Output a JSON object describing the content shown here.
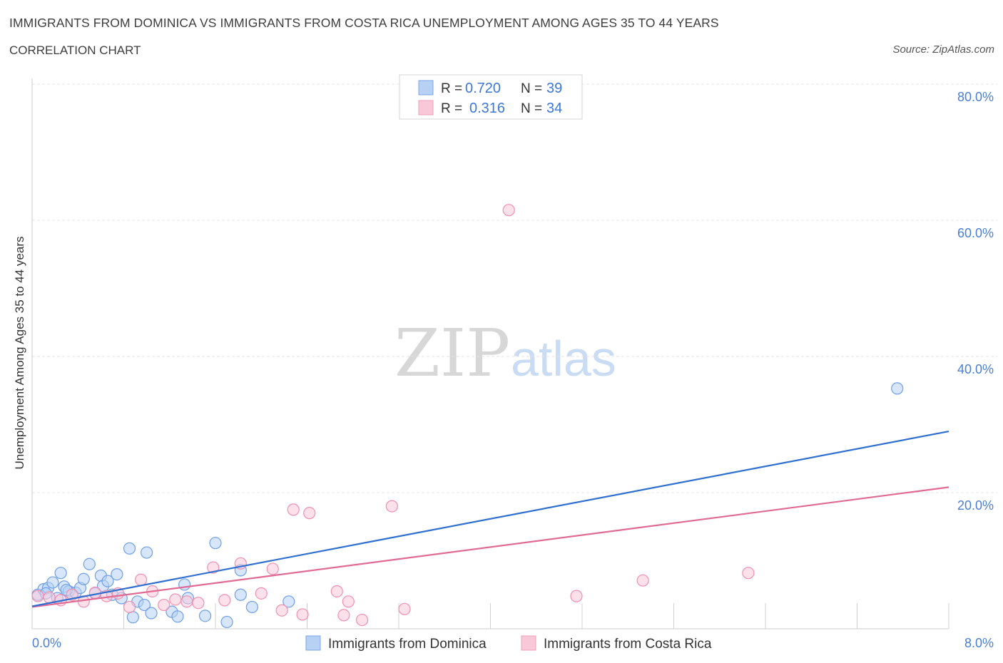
{
  "header": {
    "title": "IMMIGRANTS FROM DOMINICA VS IMMIGRANTS FROM COSTA RICA UNEMPLOYMENT AMONG AGES 35 TO 44 YEARS",
    "subtitle": "CORRELATION CHART",
    "source": "Source: ZipAtlas.com"
  },
  "watermark": {
    "zip": "ZIP",
    "atlas": "atlas"
  },
  "legend": {
    "r_label": "R =",
    "n_label": "N =",
    "rows": [
      {
        "r": "0.720",
        "n": "39"
      },
      {
        "r": "0.316",
        "n": "34"
      }
    ]
  },
  "chart_data": {
    "type": "scatter",
    "title": "IMMIGRANTS FROM DOMINICA VS IMMIGRANTS FROM COSTA RICA UNEMPLOYMENT AMONG AGES 35 TO 44 YEARS",
    "xlabel": "",
    "ylabel": "Unemployment Among Ages 35 to 44 years",
    "xlim": [
      0,
      8
    ],
    "ylim": [
      0,
      80
    ],
    "x_ticks": [
      0,
      8
    ],
    "x_tick_labels": [
      "0.0%",
      "8.0%"
    ],
    "y_ticks": [
      20,
      40,
      60,
      80
    ],
    "y_tick_labels": [
      "20.0%",
      "40.0%",
      "60.0%",
      "80.0%"
    ],
    "grid": true,
    "legend_position": "top-center",
    "colors": {
      "dominica": "#6f9fe6",
      "costa_rica": "#ef8fb0",
      "dominica_line": "#2e6fd0",
      "costa_rica_line": "#e06a93",
      "tick": "#4a7fd4"
    },
    "series": [
      {
        "name": "Immigrants from Dominica",
        "r": 0.72,
        "n": 39,
        "trend": {
          "x": [
            0,
            8
          ],
          "y": [
            3.3,
            29.0
          ]
        },
        "points": [
          [
            0.05,
            5.0
          ],
          [
            0.1,
            5.8
          ],
          [
            0.14,
            6.0
          ],
          [
            0.18,
            6.8
          ],
          [
            0.22,
            4.5
          ],
          [
            0.25,
            8.2
          ],
          [
            0.28,
            6.2
          ],
          [
            0.32,
            5.5
          ],
          [
            0.38,
            5.3
          ],
          [
            0.42,
            6.0
          ],
          [
            0.45,
            7.3
          ],
          [
            0.5,
            9.5
          ],
          [
            0.55,
            5.2
          ],
          [
            0.6,
            7.8
          ],
          [
            0.62,
            6.3
          ],
          [
            0.66,
            7.0
          ],
          [
            0.7,
            5.0
          ],
          [
            0.74,
            8.0
          ],
          [
            0.78,
            4.5
          ],
          [
            0.85,
            11.8
          ],
          [
            0.88,
            1.7
          ],
          [
            0.92,
            4.0
          ],
          [
            0.98,
            3.5
          ],
          [
            1.0,
            11.2
          ],
          [
            1.04,
            2.3
          ],
          [
            1.22,
            2.5
          ],
          [
            1.27,
            1.8
          ],
          [
            1.33,
            6.5
          ],
          [
            1.36,
            4.5
          ],
          [
            1.51,
            1.9
          ],
          [
            1.6,
            12.6
          ],
          [
            1.7,
            1.0
          ],
          [
            1.82,
            8.6
          ],
          [
            1.82,
            5.0
          ],
          [
            1.92,
            3.2
          ],
          [
            2.24,
            4.0
          ],
          [
            7.55,
            35.3
          ],
          [
            0.3,
            5.7
          ],
          [
            0.12,
            5.2
          ]
        ]
      },
      {
        "name": "Immigrants from Costa Rica",
        "r": 0.316,
        "n": 34,
        "trend": {
          "x": [
            0,
            8
          ],
          "y": [
            3.2,
            20.8
          ]
        },
        "points": [
          [
            0.05,
            4.8
          ],
          [
            0.15,
            4.6
          ],
          [
            0.25,
            4.2
          ],
          [
            0.35,
            5.0
          ],
          [
            0.45,
            4.0
          ],
          [
            0.55,
            5.3
          ],
          [
            0.65,
            4.8
          ],
          [
            0.75,
            5.2
          ],
          [
            0.85,
            3.2
          ],
          [
            0.95,
            7.2
          ],
          [
            1.05,
            5.5
          ],
          [
            1.15,
            3.5
          ],
          [
            1.25,
            4.3
          ],
          [
            1.35,
            4.0
          ],
          [
            1.45,
            3.8
          ],
          [
            1.58,
            9.0
          ],
          [
            1.68,
            4.2
          ],
          [
            1.82,
            9.6
          ],
          [
            2.0,
            5.2
          ],
          [
            2.1,
            8.8
          ],
          [
            2.18,
            2.7
          ],
          [
            2.28,
            17.5
          ],
          [
            2.36,
            2.1
          ],
          [
            2.42,
            17.0
          ],
          [
            2.66,
            5.5
          ],
          [
            2.72,
            2.0
          ],
          [
            2.76,
            4.0
          ],
          [
            2.88,
            1.3
          ],
          [
            3.14,
            18.0
          ],
          [
            3.25,
            2.9
          ],
          [
            4.16,
            61.5
          ],
          [
            4.75,
            4.8
          ],
          [
            5.33,
            7.1
          ],
          [
            6.25,
            8.2
          ]
        ]
      }
    ]
  },
  "bottom_legend": [
    {
      "label": "Immigrants from Dominica"
    },
    {
      "label": "Immigrants from Costa Rica"
    }
  ]
}
